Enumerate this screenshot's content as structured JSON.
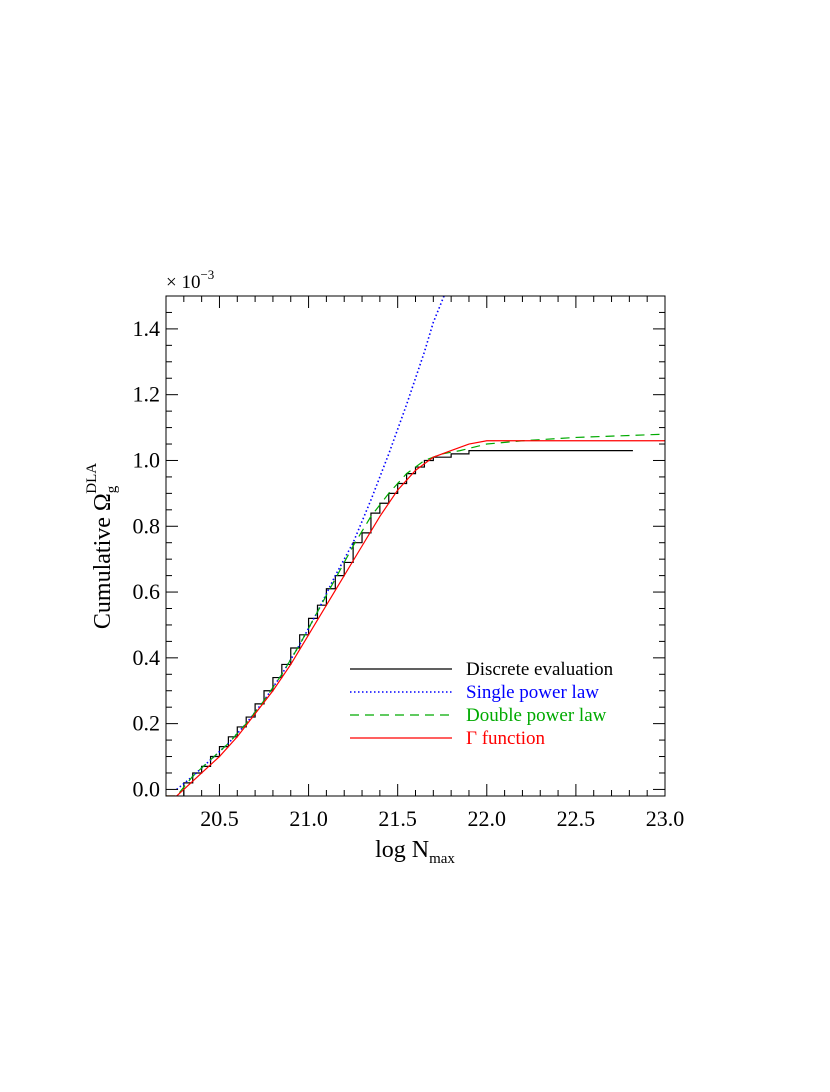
{
  "chart_data": {
    "type": "line",
    "title": "",
    "xlabel": {
      "main": "log N",
      "sub": "max"
    },
    "ylabel": {
      "main": "Cumulative Ω",
      "sub": "g",
      "sup": "DLA"
    },
    "y_multiplier": {
      "prefix": "× 10",
      "exponent": "−3"
    },
    "xlim": [
      20.2,
      23.0
    ],
    "ylim": [
      -0.02,
      1.5
    ],
    "x_ticks": [
      20.5,
      21.0,
      21.5,
      22.0,
      22.5,
      23.0
    ],
    "x_tick_labels": [
      "20.5",
      "21.0",
      "21.5",
      "22.0",
      "22.5",
      "23.0"
    ],
    "y_ticks": [
      0.0,
      0.2,
      0.4,
      0.6,
      0.8,
      1.0,
      1.2,
      1.4
    ],
    "y_tick_labels": [
      "0.0",
      "0.2",
      "0.4",
      "0.6",
      "0.8",
      "1.0",
      "1.2",
      "1.4"
    ],
    "grid": false,
    "legend_position": "lower-right",
    "series": [
      {
        "name": "Discrete evaluation",
        "color": "#000000",
        "style": "step",
        "x": [
          20.3,
          20.35,
          20.4,
          20.45,
          20.5,
          20.55,
          20.6,
          20.65,
          20.7,
          20.75,
          20.8,
          20.85,
          20.9,
          20.95,
          21.0,
          21.05,
          21.1,
          21.15,
          21.2,
          21.25,
          21.3,
          21.35,
          21.4,
          21.45,
          21.5,
          21.55,
          21.6,
          21.65,
          21.7,
          21.75,
          21.8,
          21.9,
          22.82
        ],
        "y": [
          0.02,
          0.05,
          0.07,
          0.1,
          0.13,
          0.16,
          0.19,
          0.22,
          0.26,
          0.3,
          0.34,
          0.38,
          0.43,
          0.47,
          0.52,
          0.56,
          0.61,
          0.65,
          0.69,
          0.75,
          0.78,
          0.84,
          0.87,
          0.9,
          0.93,
          0.96,
          0.98,
          1.0,
          1.01,
          1.01,
          1.02,
          1.03,
          1.03
        ]
      },
      {
        "name": "Single power law",
        "color": "#0000ff",
        "style": "dotted",
        "x": [
          20.26,
          20.35,
          20.45,
          20.55,
          20.65,
          20.75,
          20.85,
          20.95,
          21.05,
          21.15,
          21.25,
          21.35,
          21.45,
          21.55,
          21.65,
          21.7,
          21.76
        ],
        "y": [
          0.0,
          0.04,
          0.09,
          0.14,
          0.2,
          0.27,
          0.35,
          0.44,
          0.54,
          0.65,
          0.75,
          0.88,
          1.02,
          1.17,
          1.33,
          1.42,
          1.5
        ]
      },
      {
        "name": "Double power law",
        "color": "#00aa00",
        "style": "dashed",
        "x": [
          20.2,
          20.26,
          20.35,
          20.45,
          20.55,
          20.65,
          20.75,
          20.85,
          20.95,
          21.05,
          21.15,
          21.25,
          21.35,
          21.45,
          21.55,
          21.65,
          21.75,
          21.85,
          22.0,
          22.2,
          22.5,
          23.0
        ],
        "y": [
          -0.02,
          -0.02,
          0.04,
          0.09,
          0.14,
          0.2,
          0.27,
          0.35,
          0.44,
          0.54,
          0.64,
          0.74,
          0.83,
          0.9,
          0.96,
          1.0,
          1.02,
          1.03,
          1.05,
          1.06,
          1.07,
          1.08
        ]
      },
      {
        "name": "Γ function",
        "color": "#ff0000",
        "style": "solid",
        "x": [
          20.2,
          20.26,
          20.3,
          20.4,
          20.5,
          20.6,
          20.7,
          20.8,
          20.9,
          21.0,
          21.1,
          21.2,
          21.3,
          21.4,
          21.5,
          21.6,
          21.7,
          21.8,
          21.9,
          22.0,
          22.2,
          22.5,
          23.0
        ],
        "y": [
          -0.02,
          -0.02,
          0.0,
          0.05,
          0.1,
          0.16,
          0.23,
          0.3,
          0.38,
          0.47,
          0.56,
          0.65,
          0.74,
          0.83,
          0.91,
          0.97,
          1.01,
          1.03,
          1.05,
          1.06,
          1.06,
          1.06,
          1.06
        ]
      }
    ]
  }
}
